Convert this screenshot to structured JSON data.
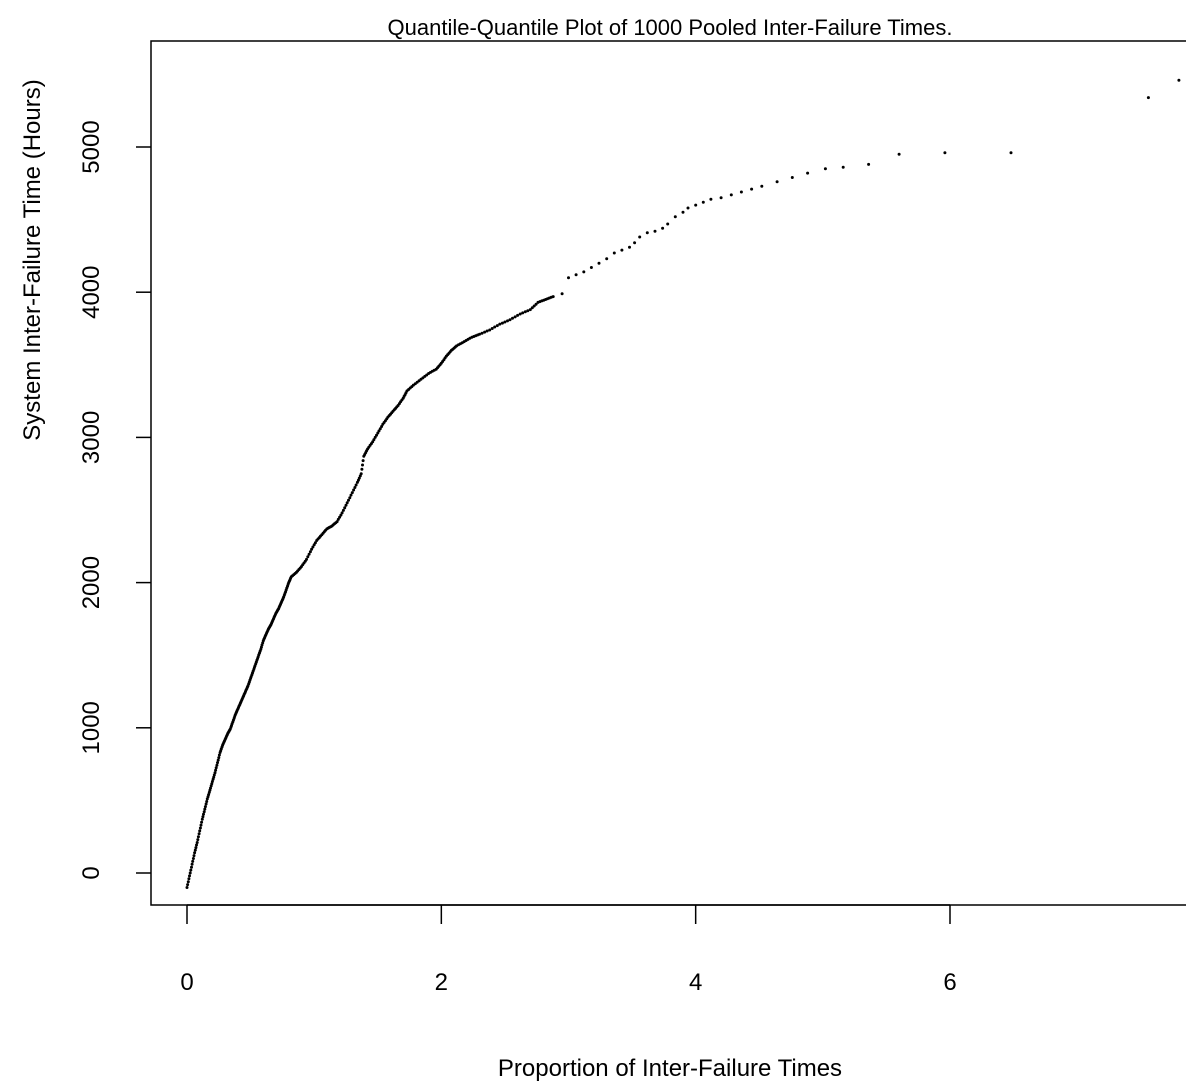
{
  "chart_data": {
    "type": "scatter",
    "title": "Quantile-Quantile Plot of 1000 Pooled Inter-Failure Times.",
    "xlabel": "Proportion of Inter-Failure Times",
    "ylabel": "System Inter-Failure Time (Hours)",
    "xlim": [
      -0.3,
      7.85
    ],
    "ylim": [
      -200,
      5550
    ],
    "xticks": [
      0,
      2,
      4,
      6
    ],
    "xtick_labels": [
      "0",
      "2",
      "4",
      "6"
    ],
    "yticks": [
      0,
      1000,
      2000,
      3000,
      4000,
      5000
    ],
    "ytick_labels": [
      "0",
      "1000",
      "2000",
      "3000",
      "4000",
      "5000"
    ],
    "grid": false,
    "legend": "none",
    "color": "#000000",
    "series": [
      {
        "points": [
          [
            0.0,
            -100
          ],
          [
            0.02,
            -20
          ],
          [
            0.04,
            60
          ],
          [
            0.06,
            140
          ],
          [
            0.08,
            210
          ],
          [
            0.1,
            290
          ],
          [
            0.12,
            370
          ],
          [
            0.14,
            440
          ],
          [
            0.16,
            510
          ],
          [
            0.18,
            570
          ],
          [
            0.2,
            630
          ],
          [
            0.22,
            690
          ],
          [
            0.24,
            760
          ],
          [
            0.26,
            830
          ],
          [
            0.28,
            880
          ],
          [
            0.3,
            920
          ],
          [
            0.32,
            960
          ],
          [
            0.34,
            990
          ],
          [
            0.36,
            1040
          ],
          [
            0.38,
            1090
          ],
          [
            0.4,
            1130
          ],
          [
            0.42,
            1170
          ],
          [
            0.44,
            1210
          ],
          [
            0.46,
            1250
          ],
          [
            0.48,
            1290
          ],
          [
            0.5,
            1340
          ],
          [
            0.52,
            1390
          ],
          [
            0.54,
            1440
          ],
          [
            0.56,
            1490
          ],
          [
            0.58,
            1540
          ],
          [
            0.6,
            1600
          ],
          [
            0.62,
            1640
          ],
          [
            0.64,
            1680
          ],
          [
            0.66,
            1710
          ],
          [
            0.68,
            1750
          ],
          [
            0.7,
            1790
          ],
          [
            0.72,
            1820
          ],
          [
            0.74,
            1860
          ],
          [
            0.76,
            1900
          ],
          [
            0.78,
            1950
          ],
          [
            0.8,
            2000
          ],
          [
            0.82,
            2040
          ],
          [
            0.86,
            2070
          ],
          [
            0.9,
            2110
          ],
          [
            0.94,
            2160
          ],
          [
            0.98,
            2230
          ],
          [
            1.02,
            2290
          ],
          [
            1.06,
            2330
          ],
          [
            1.1,
            2370
          ],
          [
            1.14,
            2390
          ],
          [
            1.18,
            2420
          ],
          [
            1.22,
            2480
          ],
          [
            1.26,
            2550
          ],
          [
            1.3,
            2620
          ],
          [
            1.34,
            2690
          ],
          [
            1.37,
            2750
          ],
          [
            1.39,
            2870
          ],
          [
            1.42,
            2920
          ],
          [
            1.46,
            2970
          ],
          [
            1.5,
            3030
          ],
          [
            1.54,
            3090
          ],
          [
            1.58,
            3140
          ],
          [
            1.62,
            3180
          ],
          [
            1.66,
            3220
          ],
          [
            1.7,
            3270
          ],
          [
            1.73,
            3320
          ],
          [
            1.78,
            3360
          ],
          [
            1.84,
            3400
          ],
          [
            1.9,
            3440
          ],
          [
            1.96,
            3470
          ],
          [
            2.0,
            3510
          ],
          [
            2.04,
            3560
          ],
          [
            2.08,
            3600
          ],
          [
            2.12,
            3630
          ],
          [
            2.18,
            3660
          ],
          [
            2.24,
            3690
          ],
          [
            2.3,
            3710
          ],
          [
            2.38,
            3740
          ],
          [
            2.46,
            3780
          ],
          [
            2.54,
            3810
          ],
          [
            2.62,
            3850
          ],
          [
            2.7,
            3880
          ],
          [
            2.76,
            3930
          ],
          [
            2.82,
            3950
          ],
          [
            2.88,
            3970
          ],
          [
            2.95,
            3990
          ],
          [
            3.0,
            4100
          ],
          [
            3.06,
            4120
          ],
          [
            3.12,
            4140
          ],
          [
            3.18,
            4170
          ],
          [
            3.24,
            4200
          ],
          [
            3.3,
            4230
          ],
          [
            3.36,
            4270
          ],
          [
            3.42,
            4290
          ],
          [
            3.48,
            4310
          ],
          [
            3.52,
            4340
          ],
          [
            3.56,
            4380
          ],
          [
            3.62,
            4410
          ],
          [
            3.68,
            4420
          ],
          [
            3.74,
            4440
          ],
          [
            3.78,
            4470
          ],
          [
            3.84,
            4520
          ],
          [
            3.9,
            4550
          ],
          [
            3.94,
            4580
          ],
          [
            4.0,
            4600
          ],
          [
            4.06,
            4620
          ],
          [
            4.12,
            4640
          ],
          [
            4.2,
            4650
          ],
          [
            4.28,
            4670
          ],
          [
            4.36,
            4690
          ],
          [
            4.44,
            4710
          ],
          [
            4.52,
            4730
          ],
          [
            4.64,
            4760
          ],
          [
            4.76,
            4790
          ],
          [
            4.88,
            4820
          ],
          [
            5.02,
            4850
          ],
          [
            5.16,
            4860
          ],
          [
            5.36,
            4880
          ],
          [
            5.6,
            4950
          ],
          [
            5.96,
            4960
          ],
          [
            6.48,
            4960
          ],
          [
            7.56,
            5340
          ],
          [
            7.8,
            5460
          ]
        ]
      }
    ]
  }
}
